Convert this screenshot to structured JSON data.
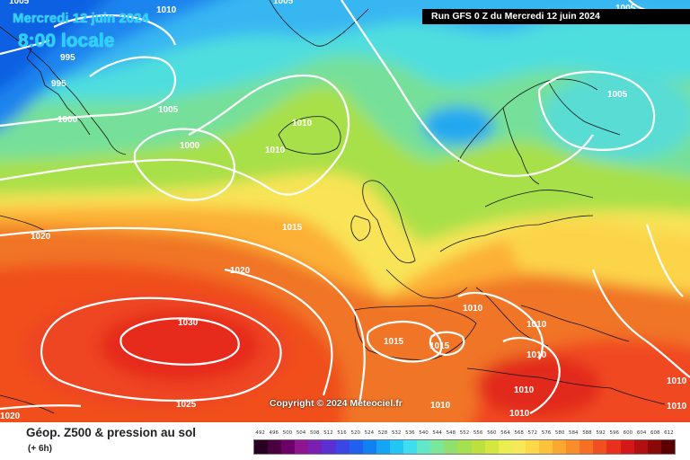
{
  "header": {
    "date": "Mercredi 12 juin 2024",
    "time": "8:00 locale",
    "run": "Run GFS 0 Z du Mercredi 12 juin 2024"
  },
  "copyright": "Copyright © 2024 Meteociel.fr",
  "footer": {
    "title": "Géop. Z500 & pression au sol",
    "subtitle": "(+ 6h)"
  },
  "legend": {
    "values": [
      "492",
      "496",
      "500",
      "504",
      "508",
      "512",
      "516",
      "520",
      "524",
      "528",
      "532",
      "536",
      "540",
      "544",
      "548",
      "552",
      "556",
      "560",
      "564",
      "568",
      "572",
      "576",
      "580",
      "584",
      "588",
      "592",
      "596",
      "600",
      "604",
      "608",
      "612"
    ],
    "colors": [
      "#2a0022",
      "#4b0040",
      "#6e0069",
      "#8f148f",
      "#7a1fb4",
      "#5a30d2",
      "#3a46e6",
      "#2060ee",
      "#1080f2",
      "#14a6f4",
      "#22c6f4",
      "#40dcf0",
      "#60e8c8",
      "#7ae89a",
      "#90e070",
      "#a4e050",
      "#bce040",
      "#d4e640",
      "#eaee50",
      "#f6e858",
      "#fcd84a",
      "#fcc23c",
      "#fca830",
      "#fa8c2a",
      "#f67024",
      "#f05020",
      "#e8301c",
      "#d41818",
      "#b01010",
      "#8a0808",
      "#5a0000"
    ]
  },
  "pressure_labels": [
    "1005",
    "1010",
    "995",
    "995",
    "1000",
    "1005",
    "1005",
    "1010",
    "1005",
    "1005",
    "1000",
    "1010",
    "1015",
    "1020",
    "1020",
    "1030",
    "1025",
    "1020",
    "1010",
    "1010",
    "1010",
    "1015",
    "1015",
    "1010",
    "1010",
    "1010",
    "1010",
    "1010"
  ]
}
